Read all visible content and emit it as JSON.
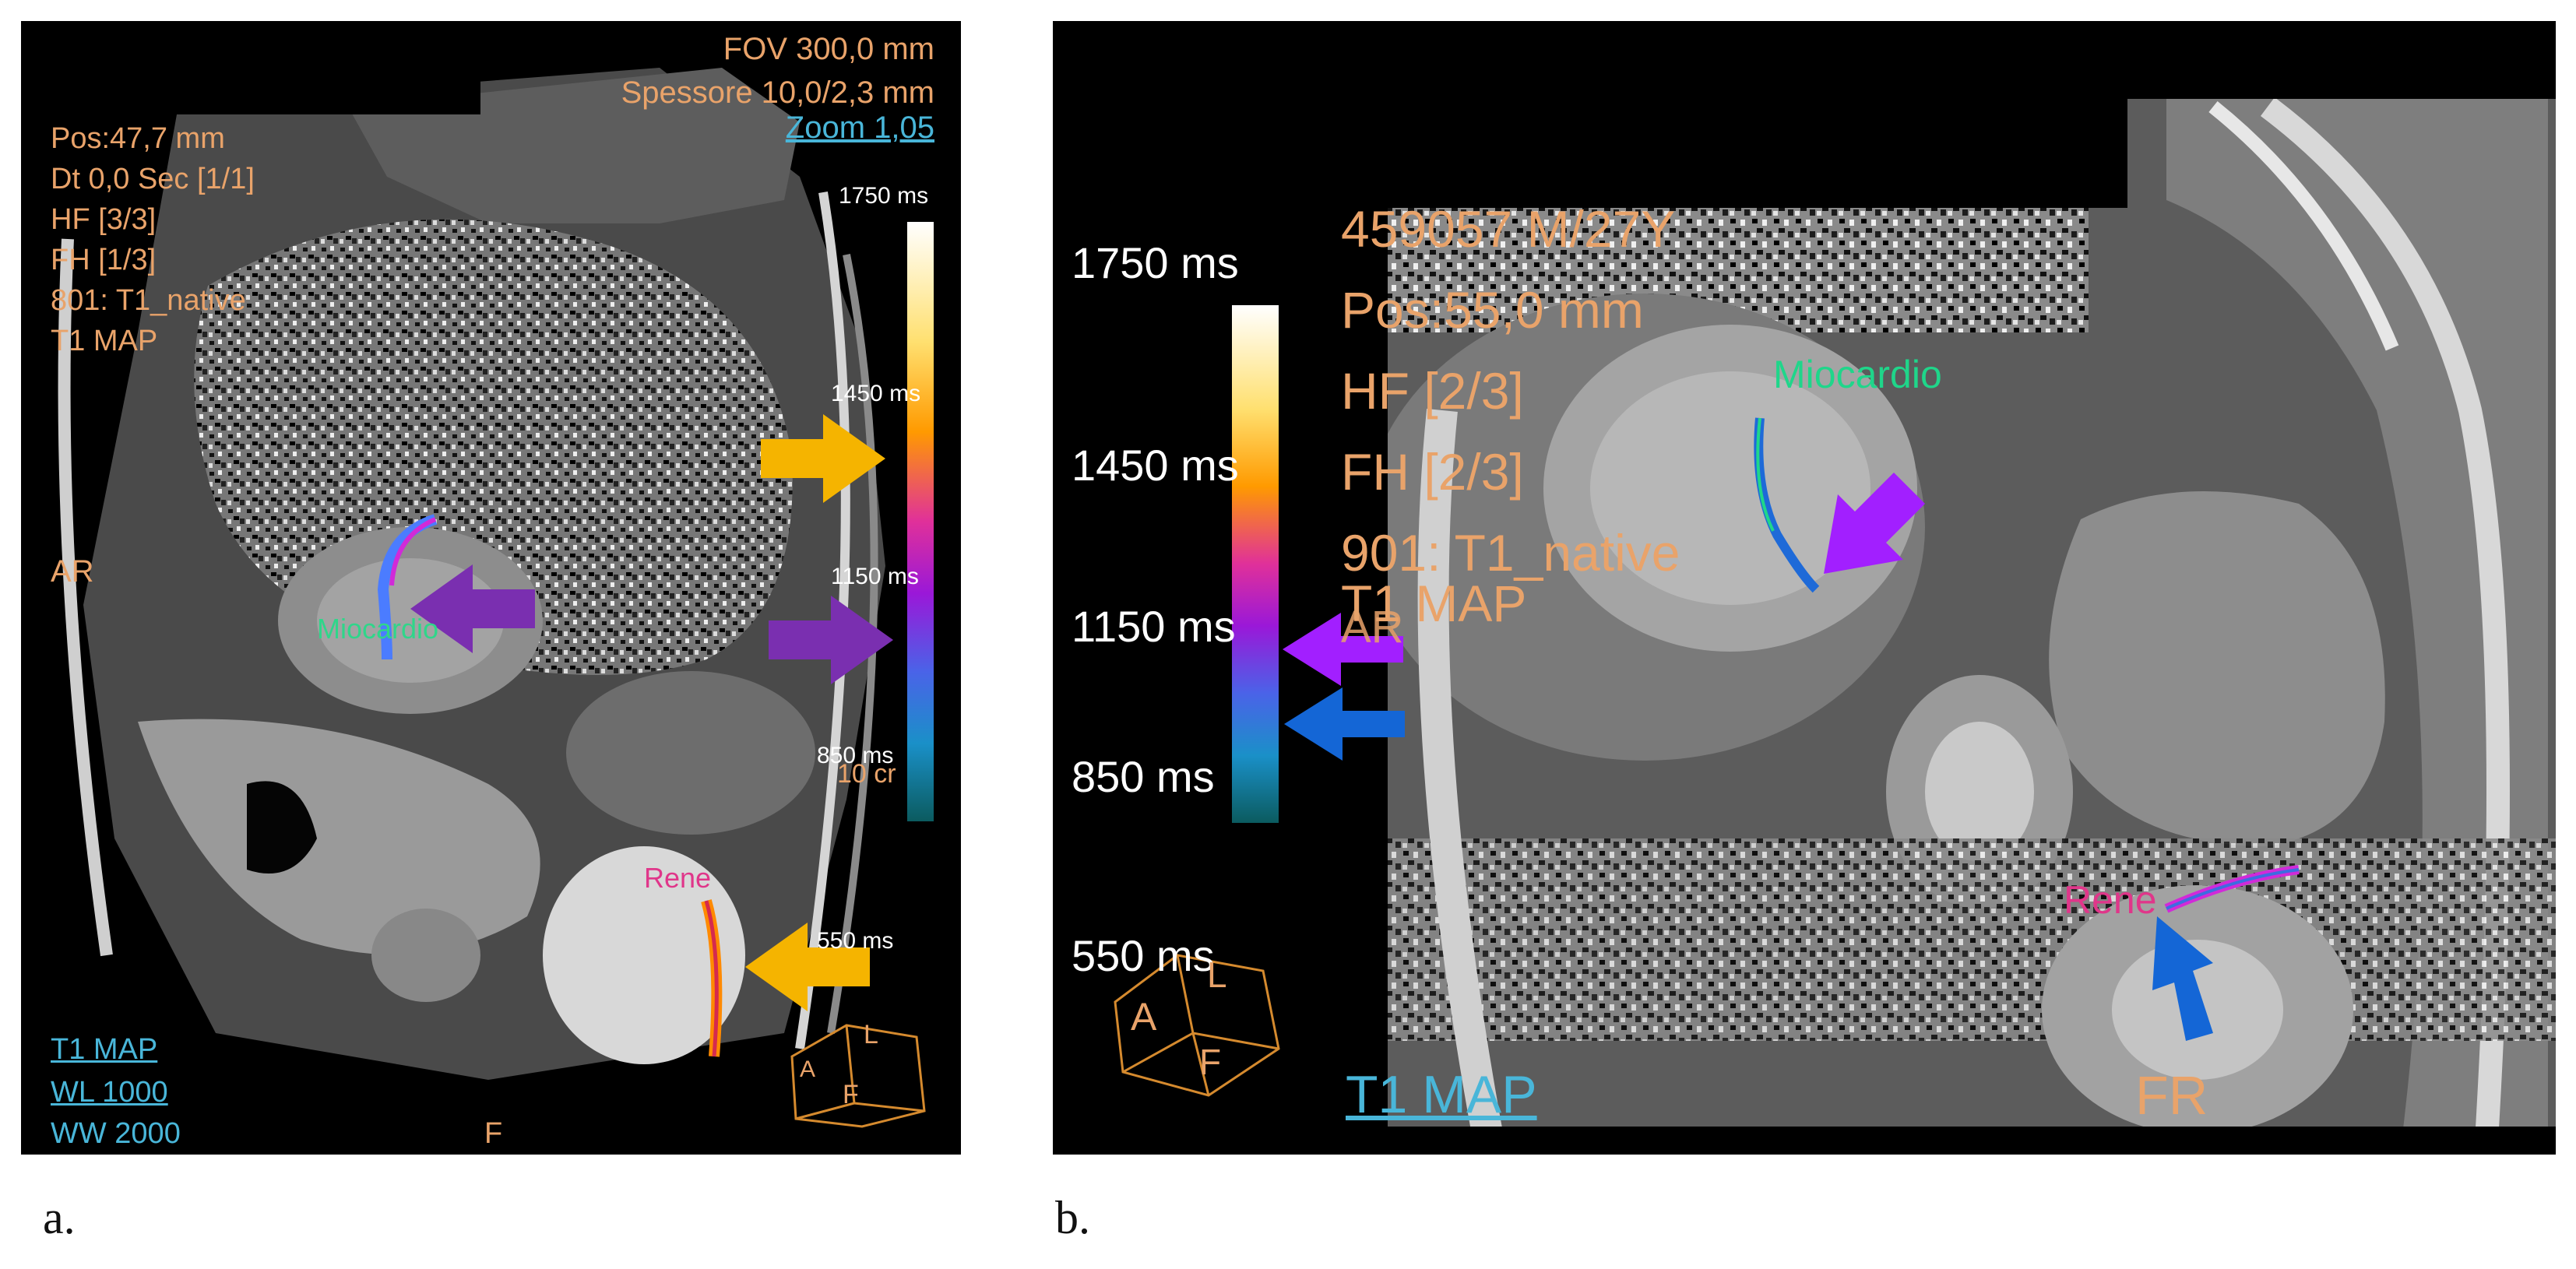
{
  "captions": {
    "a": "a.",
    "b": "b."
  },
  "panel_a": {
    "top_right": [
      "FOV 300,0 mm",
      "Spessore 10,0/2,3 mm",
      "Zoom 1,05"
    ],
    "top_left": [
      "Pos:47,7 mm",
      "Dt 0,0 Sec [1/1]",
      "HF [3/3]",
      "FH [1/3]",
      "801: T1_native",
      "T1 MAP"
    ],
    "side_label_left": "AR",
    "scale_labels": [
      "1750 ms",
      "1450 ms",
      "1150 ms",
      "850 ms",
      "550 ms"
    ],
    "scale_unit_extra": "10 cr",
    "roi_labels": {
      "myocardium": "Miocardio",
      "kidney": "Rene"
    },
    "bottom_left": [
      "T1 MAP",
      "WL  1000",
      "WW  2000"
    ],
    "bottom_center": "F",
    "cube_letters": [
      "A",
      "L",
      "F"
    ],
    "arrow_colors": {
      "orange": "#f5b400",
      "purple": "#7a2fb0"
    }
  },
  "panel_b": {
    "top_left": [
      "459057 M/27Y",
      "Pos:55,0 mm",
      "HF [2/3]",
      "FH [2/3]",
      "901: T1_native",
      "T1 MAP",
      "AR"
    ],
    "scale_labels": [
      "1750 ms",
      "1450 ms",
      "1150 ms",
      "850 ms",
      "550 ms"
    ],
    "roi_labels": {
      "myocardium": "Miocardio",
      "kidney": "Rene"
    },
    "bottom_left": "T1 MAP",
    "bottom_center": "FR",
    "cube_letters": [
      "A",
      "L",
      "F"
    ],
    "arrow_colors": {
      "purple": "#a21fff",
      "blue": "#1466d6"
    }
  },
  "colorbar_colors": [
    "#ffffff",
    "#ffe070",
    "#ff9a00",
    "#e0309a",
    "#9a18d8",
    "#4a63e8",
    "#1a90c8",
    "#0b5b5f",
    "#000000"
  ]
}
